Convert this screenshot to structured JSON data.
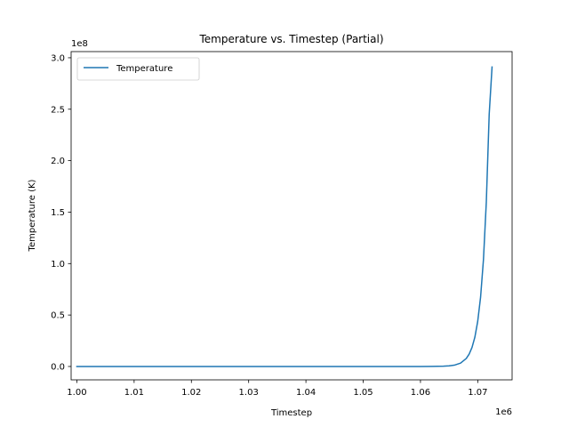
{
  "chart_data": {
    "type": "line",
    "title": "Temperature vs. Timestep (Partial)",
    "xlabel": "Timestep",
    "ylabel": "Temperature (K)",
    "x_offset_label": "1e6",
    "y_offset_label": "1e8",
    "xlim": [
      999000,
      1076000
    ],
    "ylim": [
      -13000000,
      306000000
    ],
    "x_ticks": [
      1000000,
      1010000,
      1020000,
      1030000,
      1040000,
      1050000,
      1060000,
      1070000
    ],
    "x_tick_labels": [
      "1.00",
      "1.01",
      "1.02",
      "1.03",
      "1.04",
      "1.05",
      "1.06",
      "1.07"
    ],
    "y_ticks": [
      0,
      50000000,
      100000000,
      150000000,
      200000000,
      250000000,
      300000000
    ],
    "y_tick_labels": [
      "0.0",
      "0.5",
      "1.0",
      "1.5",
      "2.0",
      "2.5",
      "3.0"
    ],
    "grid": false,
    "legend_position": "upper-left",
    "series": [
      {
        "name": "Temperature",
        "color": "#1f77b4",
        "x": [
          1000000,
          1010000,
          1020000,
          1030000,
          1040000,
          1050000,
          1060000,
          1062000,
          1064000,
          1065000,
          1066000,
          1067000,
          1068000,
          1068500,
          1069000,
          1069500,
          1070000,
          1070500,
          1071000,
          1071500,
          1072000,
          1072500
        ],
        "values": [
          0,
          0,
          0,
          0,
          0,
          0,
          0,
          50000,
          250000,
          600000,
          1400000,
          3300000,
          7800000,
          12000000,
          18500000,
          28500000,
          44000000,
          67500000,
          104000000,
          160000000,
          245000000,
          291000000
        ]
      }
    ]
  }
}
